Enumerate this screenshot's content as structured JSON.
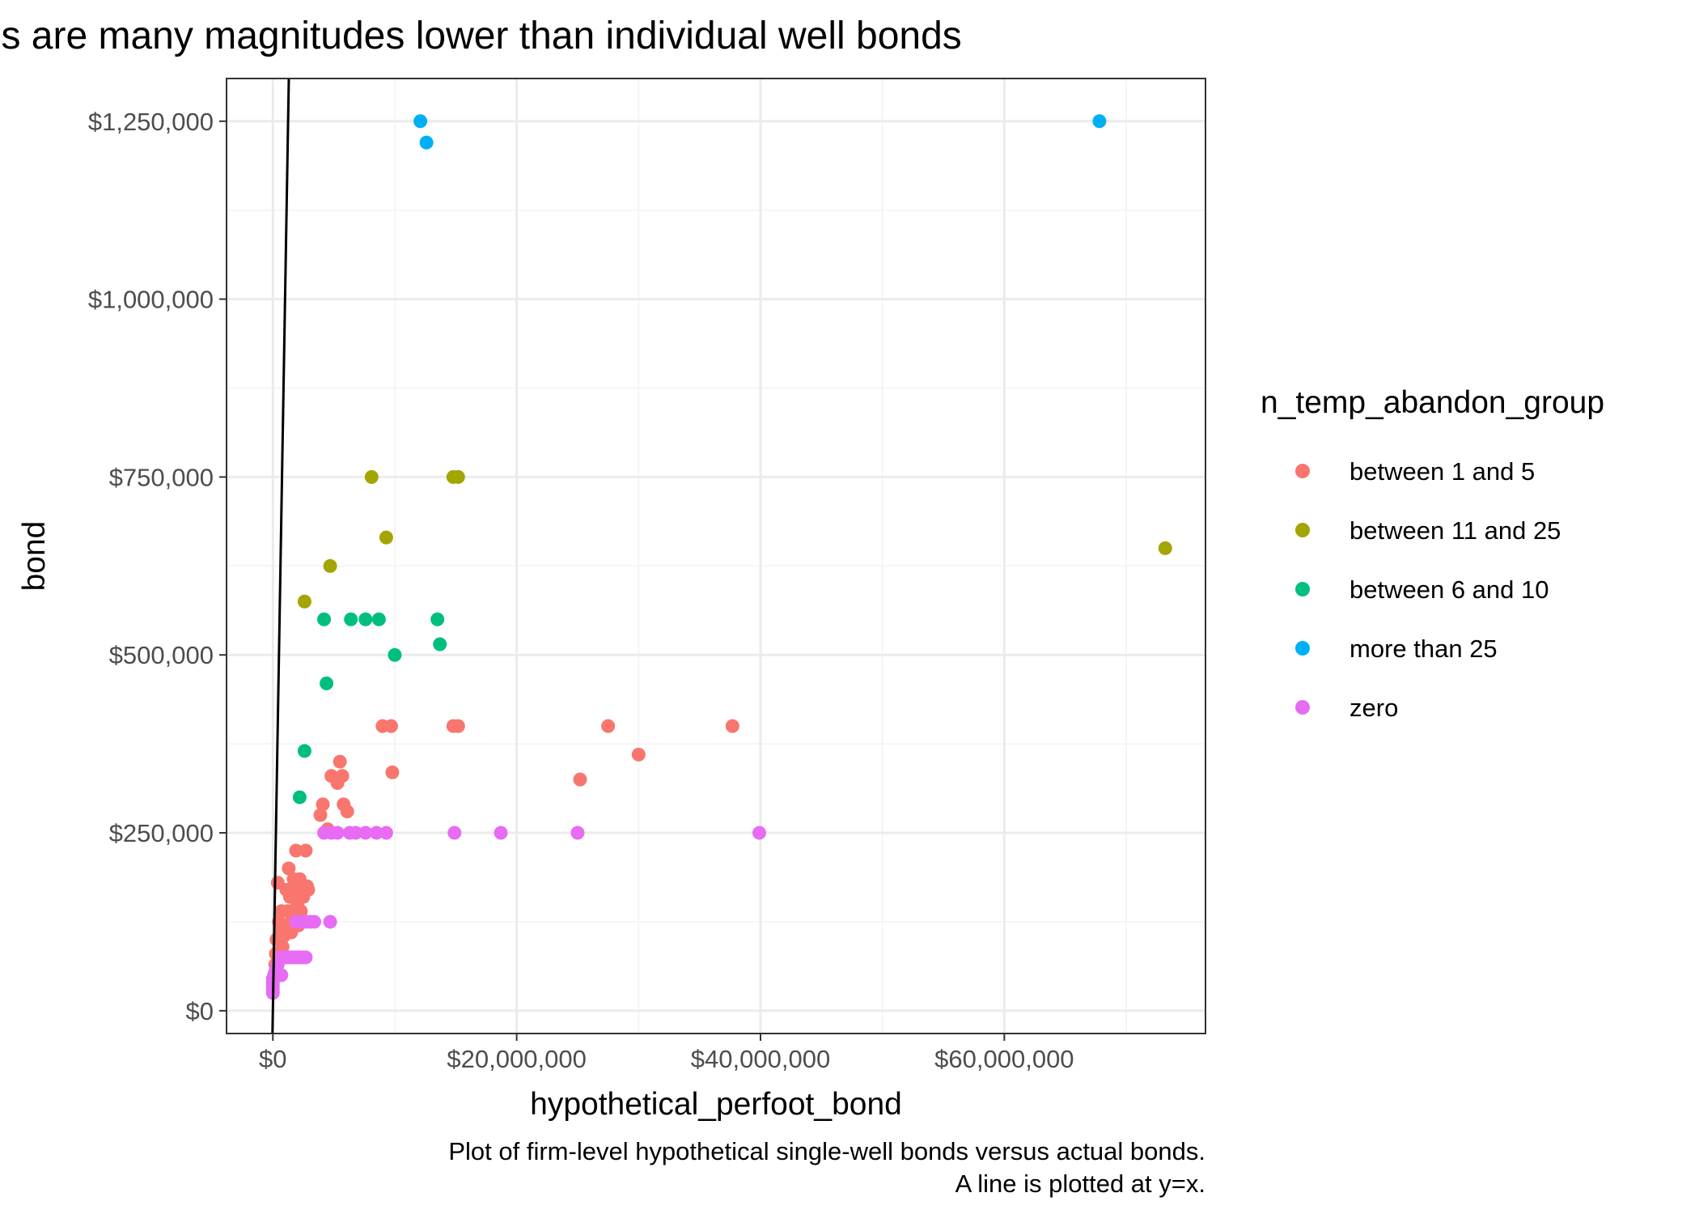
{
  "chart_data": {
    "type": "scatter",
    "title": "Blanket bonds are many magnitudes lower than  individual well bonds",
    "xlabel": "hypothetical_perfoot_bond",
    "ylabel": "bond",
    "caption_line1": "Plot of firm-level hypothetical single-well bonds versus actual bonds.",
    "caption_line2": "A line is plotted at y=x.",
    "xlim": [
      -3800000,
      76500000
    ],
    "ylim": [
      -32000,
      1310000
    ],
    "x_ticks": [
      {
        "value": 0,
        "label": "$0"
      },
      {
        "value": 20000000,
        "label": "$20,000,000"
      },
      {
        "value": 40000000,
        "label": "$40,000,000"
      },
      {
        "value": 60000000,
        "label": "$60,000,000"
      }
    ],
    "y_ticks": [
      {
        "value": 0,
        "label": "$0"
      },
      {
        "value": 250000,
        "label": "$250,000"
      },
      {
        "value": 500000,
        "label": "$500,000"
      },
      {
        "value": 750000,
        "label": "$750,000"
      },
      {
        "value": 1000000,
        "label": "$1,000,000"
      },
      {
        "value": 1250000,
        "label": "$1,250,000"
      }
    ],
    "x_minor": [
      -10000000,
      10000000,
      30000000,
      50000000,
      70000000
    ],
    "y_minor": [
      125000,
      375000,
      625000,
      875000,
      1125000
    ],
    "grid": true,
    "reference_line": "y=x",
    "legend": {
      "title": "n_temp_abandon_group",
      "position": "right"
    },
    "series": [
      {
        "name": "between 1 and 5",
        "color": "#F8766D",
        "points": [
          [
            200000,
            65000
          ],
          [
            250000,
            80000
          ],
          [
            300000,
            100000
          ],
          [
            400000,
            180000
          ],
          [
            500000,
            125000
          ],
          [
            600000,
            110000
          ],
          [
            700000,
            140000
          ],
          [
            800000,
            90000
          ],
          [
            900000,
            105000
          ],
          [
            1000000,
            120000
          ],
          [
            1100000,
            170000
          ],
          [
            1200000,
            140000
          ],
          [
            1300000,
            200000
          ],
          [
            1400000,
            160000
          ],
          [
            1500000,
            110000
          ],
          [
            1600000,
            130000
          ],
          [
            1700000,
            185000
          ],
          [
            1800000,
            170000
          ],
          [
            1900000,
            225000
          ],
          [
            2000000,
            150000
          ],
          [
            2100000,
            120000
          ],
          [
            2200000,
            185000
          ],
          [
            2300000,
            140000
          ],
          [
            2500000,
            160000
          ],
          [
            2700000,
            225000
          ],
          [
            2800000,
            175000
          ],
          [
            2900000,
            170000
          ],
          [
            3900000,
            275000
          ],
          [
            4100000,
            290000
          ],
          [
            4500000,
            255000
          ],
          [
            4800000,
            330000
          ],
          [
            5300000,
            320000
          ],
          [
            5500000,
            350000
          ],
          [
            5700000,
            330000
          ],
          [
            5800000,
            290000
          ],
          [
            6100000,
            280000
          ],
          [
            9000000,
            400000
          ],
          [
            9700000,
            400000
          ],
          [
            9800000,
            335000
          ],
          [
            14800000,
            400000
          ],
          [
            15200000,
            400000
          ],
          [
            25200000,
            325000
          ],
          [
            27500000,
            400000
          ],
          [
            30000000,
            360000
          ],
          [
            37700000,
            400000
          ]
        ]
      },
      {
        "name": "between 11 and 25",
        "color": "#A3A500",
        "points": [
          [
            2600000,
            575000
          ],
          [
            4700000,
            625000
          ],
          [
            8100000,
            750000
          ],
          [
            9300000,
            665000
          ],
          [
            14800000,
            750000
          ],
          [
            15200000,
            750000
          ],
          [
            73200000,
            650000
          ]
        ]
      },
      {
        "name": "between 6 and 10",
        "color": "#00BF7D",
        "points": [
          [
            2200000,
            300000
          ],
          [
            2600000,
            365000
          ],
          [
            4200000,
            550000
          ],
          [
            4400000,
            460000
          ],
          [
            6400000,
            550000
          ],
          [
            7600000,
            550000
          ],
          [
            8700000,
            550000
          ],
          [
            10000000,
            500000
          ],
          [
            13500000,
            550000
          ],
          [
            13700000,
            515000
          ]
        ]
      },
      {
        "name": "more than 25",
        "color": "#00B0F6",
        "points": [
          [
            12100000,
            1250000
          ],
          [
            12600000,
            1220000
          ],
          [
            67800000,
            1250000
          ]
        ]
      },
      {
        "name": "zero",
        "color": "#E76BF3",
        "points": [
          [
            0,
            25000
          ],
          [
            0,
            30000
          ],
          [
            0,
            35000
          ],
          [
            0,
            40000
          ],
          [
            0,
            45000
          ],
          [
            100000,
            50000
          ],
          [
            200000,
            55000
          ],
          [
            300000,
            60000
          ],
          [
            400000,
            65000
          ],
          [
            600000,
            75000
          ],
          [
            700000,
            50000
          ],
          [
            900000,
            75000
          ],
          [
            1100000,
            75000
          ],
          [
            1300000,
            75000
          ],
          [
            1500000,
            75000
          ],
          [
            1700000,
            75000
          ],
          [
            1900000,
            75000
          ],
          [
            2100000,
            75000
          ],
          [
            2300000,
            75000
          ],
          [
            2500000,
            75000
          ],
          [
            2700000,
            75000
          ],
          [
            1900000,
            125000
          ],
          [
            2200000,
            125000
          ],
          [
            2500000,
            125000
          ],
          [
            2800000,
            125000
          ],
          [
            3100000,
            125000
          ],
          [
            3400000,
            125000
          ],
          [
            4700000,
            125000
          ],
          [
            4200000,
            250000
          ],
          [
            4800000,
            250000
          ],
          [
            5300000,
            250000
          ],
          [
            6300000,
            250000
          ],
          [
            6800000,
            250000
          ],
          [
            7600000,
            250000
          ],
          [
            8500000,
            250000
          ],
          [
            9300000,
            250000
          ],
          [
            14900000,
            250000
          ],
          [
            18700000,
            250000
          ],
          [
            25000000,
            250000
          ],
          [
            39900000,
            250000
          ]
        ]
      }
    ]
  }
}
